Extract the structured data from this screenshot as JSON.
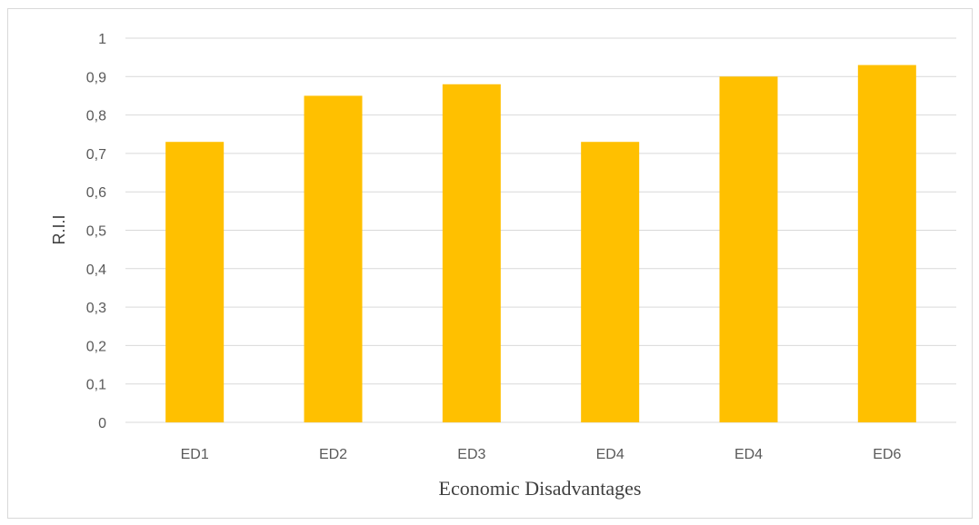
{
  "chart_data": {
    "type": "bar",
    "title": "",
    "xlabel": "Economic Disadvantages",
    "ylabel": "R.I.I",
    "categories": [
      "ED1",
      "ED2",
      "ED3",
      "ED4",
      "ED4",
      "ED6"
    ],
    "values": [
      0.73,
      0.85,
      0.88,
      0.73,
      0.9,
      0.93
    ],
    "ylim": [
      0,
      1
    ],
    "yticks": [
      "0",
      "0,1",
      "0,2",
      "0,3",
      "0,4",
      "0,5",
      "0,6",
      "0,7",
      "0,8",
      "0,9",
      "1"
    ],
    "grid": true,
    "legend": "none",
    "colors": {
      "bar": "#FFC000",
      "grid": "#D9D9D9",
      "axis": "#D9D9D9"
    }
  }
}
